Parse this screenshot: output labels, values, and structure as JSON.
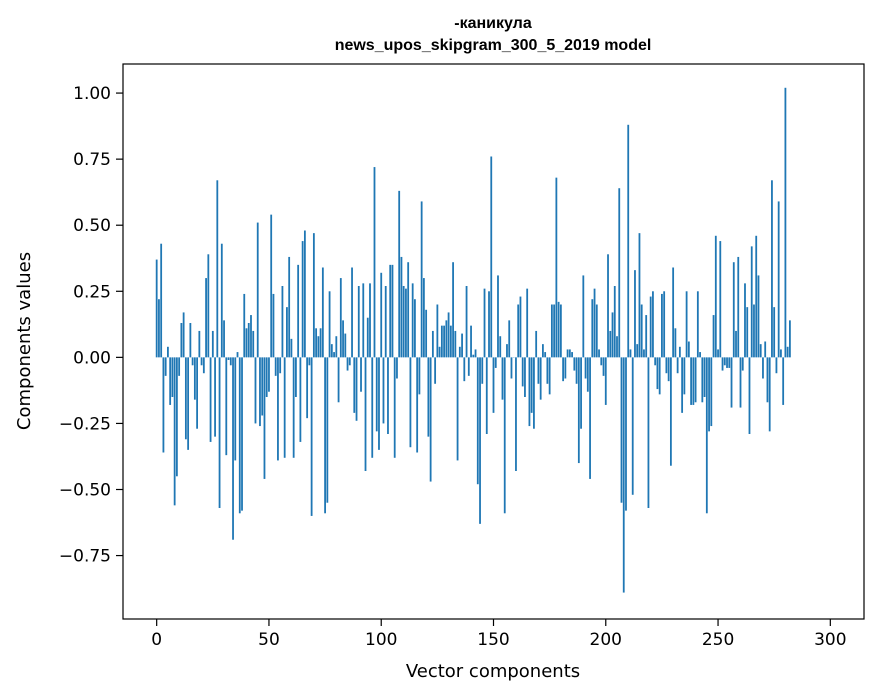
{
  "chart_data": {
    "type": "bar",
    "title": "-каникула",
    "subtitle": "news_upos_skipgram_300_5_2019 model",
    "xlabel": "Vector components",
    "ylabel": "Components values",
    "xlim": [
      -15,
      315
    ],
    "ylim": [
      -0.99,
      1.11
    ],
    "xticks": [
      0,
      50,
      100,
      150,
      200,
      250,
      300
    ],
    "xtick_labels": [
      "0",
      "50",
      "100",
      "150",
      "200",
      "250",
      "300"
    ],
    "yticks": [
      -0.75,
      -0.5,
      -0.25,
      0.0,
      0.25,
      0.5,
      0.75,
      1.0
    ],
    "ytick_labels": [
      "−0.75",
      "−0.50",
      "−0.25",
      "0.00",
      "0.25",
      "0.50",
      "0.75",
      "1.00"
    ],
    "bar_color": "#1f77b4",
    "grid": false,
    "x": "0..299",
    "values": [
      0.37,
      0.22,
      0.43,
      -0.36,
      -0.07,
      0.04,
      -0.18,
      -0.15,
      -0.56,
      -0.45,
      -0.07,
      0.13,
      0.17,
      -0.31,
      -0.35,
      0.13,
      -0.03,
      -0.16,
      -0.27,
      0.1,
      -0.03,
      -0.06,
      0.3,
      0.39,
      -0.32,
      0.1,
      -0.3,
      0.67,
      -0.57,
      0.43,
      0.14,
      -0.37,
      -0.01,
      -0.03,
      -0.69,
      -0.39,
      0.02,
      -0.59,
      -0.58,
      0.24,
      0.11,
      0.13,
      0.16,
      0.1,
      -0.25,
      0.51,
      -0.26,
      -0.22,
      -0.46,
      -0.15,
      -0.13,
      0.54,
      0.24,
      -0.07,
      -0.39,
      -0.06,
      0.27,
      -0.38,
      0.19,
      0.38,
      0.07,
      -0.38,
      -0.15,
      0.35,
      -0.32,
      0.44,
      0.48,
      -0.23,
      -0.03,
      -0.6,
      0.47,
      0.11,
      0.08,
      0.11,
      0.34,
      -0.59,
      -0.55,
      0.25,
      0.05,
      0.02,
      0.08,
      -0.17,
      0.3,
      0.14,
      0.09,
      -0.05,
      -0.03,
      0.34,
      -0.21,
      -0.24,
      0.27,
      -0.13,
      0.28,
      -0.43,
      0.15,
      0.28,
      -0.38,
      0.72,
      -0.28,
      -0.35,
      0.32,
      -0.25,
      0.27,
      -0.29,
      0.35,
      0.35,
      -0.38,
      -0.08,
      0.63,
      0.38,
      0.27,
      0.26,
      0.36,
      -0.34,
      0.28,
      0.22,
      -0.36,
      -0.14,
      0.59,
      0.3,
      0.18,
      -0.3,
      -0.47,
      0.1,
      -0.1,
      0.2,
      0.04,
      0.12,
      0.12,
      0.14,
      0.17,
      0.12,
      0.36,
      0.1,
      -0.39,
      0.04,
      0.09,
      -0.09,
      0.27,
      -0.07,
      0.12,
      0.01,
      0.03,
      -0.48,
      -0.63,
      -0.1,
      0.26,
      -0.29,
      0.25,
      0.76,
      -0.21,
      -0.04,
      0.31,
      0.08,
      -0.16,
      -0.59,
      0.05,
      0.14,
      -0.08,
      0.0,
      -0.43,
      0.2,
      0.23,
      -0.11,
      -0.15,
      0.26,
      -0.26,
      -0.21,
      -0.27,
      0.1,
      -0.1,
      -0.16,
      0.05,
      0.02,
      -0.1,
      -0.14,
      0.2,
      0.2,
      0.68,
      0.21,
      0.2,
      -0.09,
      -0.08,
      0.03,
      0.03,
      0.02,
      -0.05,
      -0.1,
      -0.4,
      -0.27,
      0.31,
      -0.08,
      -0.13,
      -0.46,
      0.22,
      0.26,
      0.2,
      0.03,
      -0.03,
      -0.07,
      -0.18,
      0.39,
      0.1,
      0.17,
      0.27,
      0.08,
      0.64,
      -0.55,
      -0.89,
      -0.58,
      0.88,
      0.03,
      -0.52,
      0.33,
      0.05,
      0.47,
      0.2,
      0.03,
      0.16,
      -0.57,
      0.23,
      0.25,
      -0.03,
      -0.12,
      -0.14,
      0.24,
      0.25,
      -0.06,
      -0.09,
      -0.41,
      0.34,
      0.11,
      -0.06,
      0.04,
      -0.21,
      -0.14,
      0.25,
      0.06,
      -0.18,
      -0.18,
      -0.17,
      0.25,
      0.02,
      -0.17,
      -0.15,
      -0.59,
      -0.28,
      -0.26,
      0.16,
      0.46,
      0.03,
      0.44,
      -0.05,
      -0.03,
      -0.04,
      -0.04,
      -0.19,
      0.36,
      0.1,
      0.38,
      -0.19,
      -0.05,
      0.28,
      0.19,
      -0.29,
      0.42,
      0.2,
      0.46,
      0.31,
      0.05,
      -0.08,
      0.06,
      -0.17,
      -0.28,
      0.67,
      0.19,
      -0.06,
      0.59,
      0.03,
      -0.18,
      1.02,
      0.04,
      0.14
    ]
  }
}
